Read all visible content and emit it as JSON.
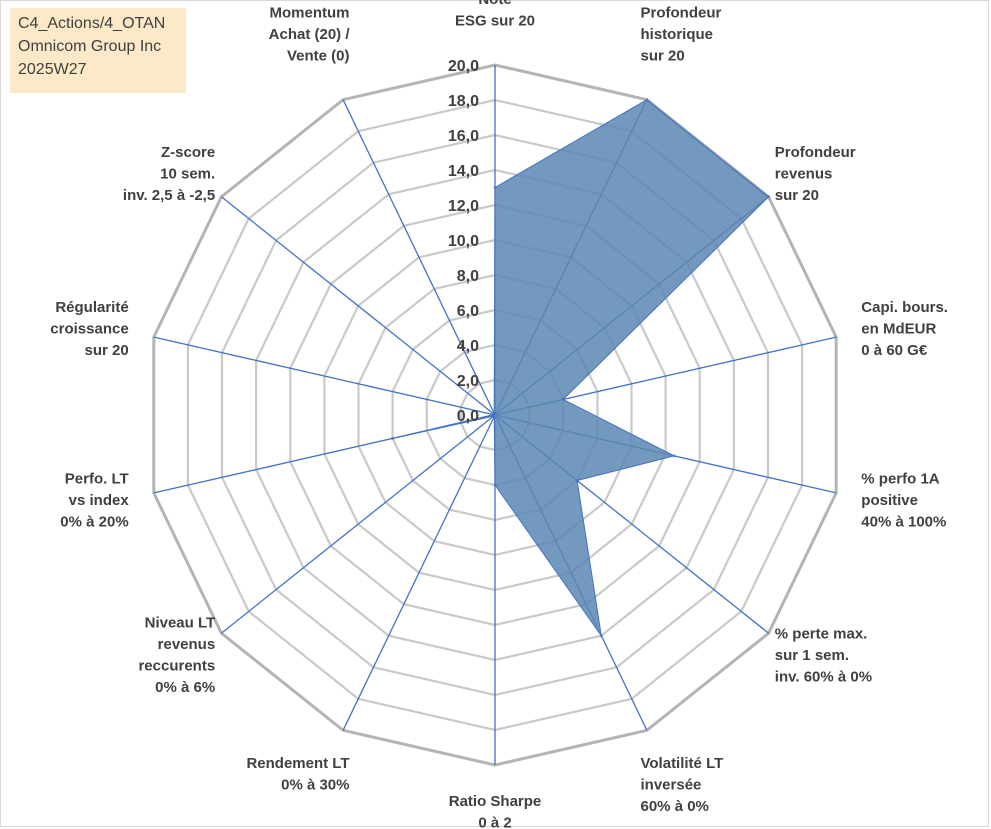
{
  "info": {
    "line1": "C4_Actions/4_OTAN",
    "line2": "Omnicom Group Inc",
    "line3": "2025W27"
  },
  "colors": {
    "fill": "#5b87b3",
    "spoke": "#4472c4",
    "ring": "#c9c9c9",
    "outer_ring": "#b4b4b4",
    "text": "#404040"
  },
  "chart_data": {
    "type": "radar",
    "rmin": 0,
    "rmax": 20,
    "ticks": [
      "0,0",
      "2,0",
      "4,0",
      "6,0",
      "8,0",
      "10,0",
      "12,0",
      "14,0",
      "16,0",
      "18,0",
      "20,0"
    ],
    "categories": [
      {
        "lines": [
          "Note",
          "ESG sur 20"
        ]
      },
      {
        "lines": [
          "Profondeur",
          "historique",
          "sur 20"
        ]
      },
      {
        "lines": [
          "Profondeur",
          "revenus",
          "sur 20"
        ]
      },
      {
        "lines": [
          "Capi. bours.",
          "en MdEUR",
          "0 à 60 G€"
        ]
      },
      {
        "lines": [
          "% perfo 1A",
          "positive",
          "40% à 100%"
        ]
      },
      {
        "lines": [
          "% perte max.",
          "sur 1 sem.",
          "inv. 60% à 0%"
        ]
      },
      {
        "lines": [
          "Volatilité LT",
          "inversée",
          "60% à 0%"
        ]
      },
      {
        "lines": [
          "Ratio Sharpe",
          "0 à 2"
        ]
      },
      {
        "lines": [
          "Rendement LT",
          "0% à 30%"
        ]
      },
      {
        "lines": [
          "Niveau LT",
          "revenus",
          "reccurents",
          "0% à 6%"
        ]
      },
      {
        "lines": [
          "Perfo. LT",
          "vs index",
          "0% à 20%"
        ]
      },
      {
        "lines": [
          "Régularité",
          "croissance",
          "sur 20"
        ]
      },
      {
        "lines": [
          "Z-score",
          "10 sem.",
          "inv. 2,5 à -2,5"
        ]
      },
      {
        "lines": [
          "Momentum",
          "Achat (20) /",
          "Vente (0)"
        ]
      }
    ],
    "series": [
      {
        "values": [
          13.0,
          20.0,
          20.0,
          4.0,
          10.5,
          6.0,
          14.0,
          4.0,
          0.1,
          0.1,
          6.0,
          0.1,
          0.1,
          0.1
        ]
      }
    ]
  }
}
